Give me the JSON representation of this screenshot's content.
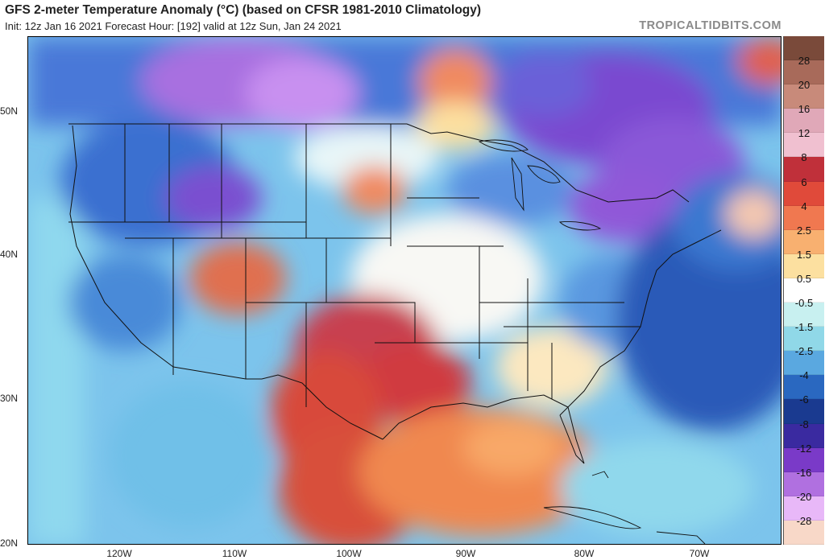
{
  "header": {
    "title": "GFS 2-meter Temperature Anomaly (°C) (based on CFSR 1981-2010 Climatology)",
    "subtitle": "Init: 12z Jan 16 2021    Forecast Hour: [192]    valid at 12z Sun, Jan 24 2021",
    "watermark": "TROPICALTIDBITS.COM"
  },
  "axes": {
    "lat_labels": [
      "50N",
      "40N",
      "30N",
      "20N"
    ],
    "lon_labels": [
      "120W",
      "110W",
      "100W",
      "90W",
      "80W",
      "70W"
    ]
  },
  "colorbar": {
    "labels": [
      "28",
      "20",
      "16",
      "12",
      "8",
      "6",
      "4",
      "2.5",
      "1.5",
      "0.5",
      "-0.5",
      "-1.5",
      "-2.5",
      "-4",
      "-6",
      "-8",
      "-12",
      "-16",
      "-20",
      "-28"
    ],
    "colors": [
      "#7a4a3a",
      "#a86a5a",
      "#c88a7a",
      "#e0a8b8",
      "#f0c0d0",
      "#c0303a",
      "#e04a3a",
      "#f07850",
      "#f8b070",
      "#fce0a0",
      "#ffffff",
      "#c8f0f0",
      "#90d8e8",
      "#5aa8e0",
      "#2a68c0",
      "#1a3a90",
      "#3a2aa0",
      "#7a3ac8",
      "#b070e0",
      "#e8b8f8",
      "#f8d8c8"
    ]
  }
}
